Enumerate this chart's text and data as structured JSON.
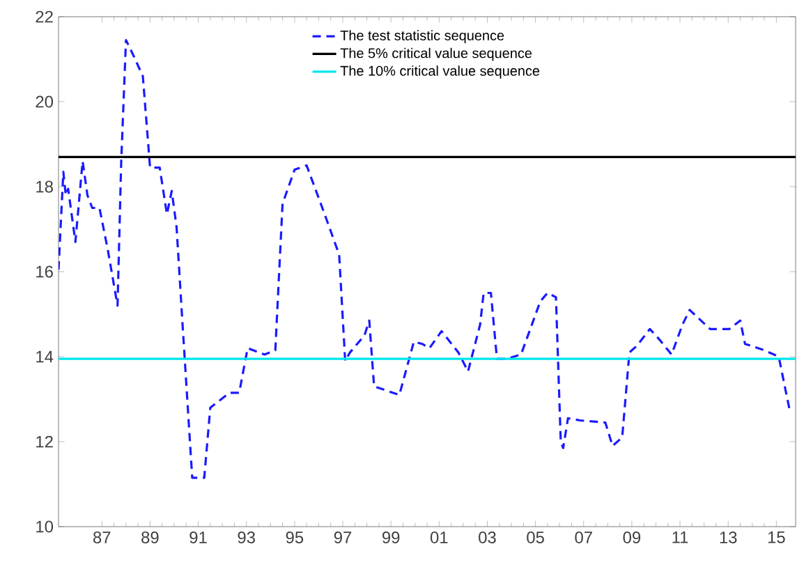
{
  "chart_data": {
    "type": "line",
    "xlim": [
      1985.2,
      2015.8
    ],
    "ylim": [
      10,
      22
    ],
    "xticks": [
      {
        "value": 1987,
        "label": "87"
      },
      {
        "value": 1989,
        "label": "89"
      },
      {
        "value": 1991,
        "label": "91"
      },
      {
        "value": 1993,
        "label": "93"
      },
      {
        "value": 1995,
        "label": "95"
      },
      {
        "value": 1997,
        "label": "97"
      },
      {
        "value": 1999,
        "label": "99"
      },
      {
        "value": 2001,
        "label": "01"
      },
      {
        "value": 2003,
        "label": "03"
      },
      {
        "value": 2005,
        "label": "05"
      },
      {
        "value": 2007,
        "label": "07"
      },
      {
        "value": 2009,
        "label": "09"
      },
      {
        "value": 2011,
        "label": "11"
      },
      {
        "value": 2013,
        "label": "13"
      },
      {
        "value": 2015,
        "label": "15"
      }
    ],
    "yticks": [
      10,
      12,
      14,
      16,
      18,
      20,
      22
    ],
    "grid": false,
    "legend": "top",
    "marker": "none",
    "series": [
      {
        "name": "The test statistic sequence",
        "color": "#1a1aff",
        "line_style": "dashed",
        "x": [
          1985.2,
          1985.4,
          1985.5,
          1985.6,
          1985.9,
          1986.2,
          1986.4,
          1986.6,
          1986.9,
          1987.25,
          1987.65,
          1987.8,
          1988.0,
          1988.3,
          1988.7,
          1989.0,
          1989.4,
          1989.7,
          1989.9,
          1990.1,
          1990.35,
          1990.75,
          1991.25,
          1991.5,
          1992.3,
          1992.7,
          1993.05,
          1993.75,
          1994.2,
          1994.5,
          1995.0,
          1995.5,
          1996.25,
          1996.85,
          1997.1,
          1997.3,
          1997.9,
          1998.1,
          1998.3,
          1999.35,
          1999.95,
          2000.3,
          2000.6,
          2001.1,
          2001.8,
          2002.2,
          2002.7,
          2002.85,
          2003.15,
          2003.4,
          2003.8,
          2004.4,
          2005.2,
          2005.5,
          2005.85,
          2006.05,
          2006.15,
          2006.35,
          2006.85,
          2007.9,
          2008.2,
          2008.6,
          2008.9,
          2009.2,
          2009.75,
          2010.15,
          2010.65,
          2011.1,
          2011.4,
          2012.25,
          2013.05,
          2013.5,
          2013.7,
          2014.5,
          2015.1,
          2015.35,
          2015.55
        ],
        "values": [
          16.05,
          18.35,
          17.8,
          17.95,
          16.7,
          18.6,
          17.8,
          17.5,
          17.5,
          16.5,
          15.2,
          18.55,
          21.45,
          21.1,
          20.6,
          18.45,
          18.45,
          17.35,
          17.9,
          17.05,
          14.75,
          11.15,
          11.15,
          12.8,
          13.15,
          13.15,
          14.2,
          14.05,
          14.15,
          17.6,
          18.4,
          18.5,
          17.35,
          16.4,
          13.9,
          14.1,
          14.5,
          14.85,
          13.3,
          13.1,
          14.35,
          14.3,
          14.2,
          14.6,
          14.1,
          13.65,
          14.75,
          15.5,
          15.5,
          13.95,
          13.95,
          14.05,
          15.3,
          15.5,
          15.4,
          12.0,
          11.85,
          12.55,
          12.5,
          12.45,
          11.9,
          12.1,
          14.1,
          14.25,
          14.65,
          14.4,
          14.05,
          14.75,
          15.1,
          14.65,
          14.65,
          14.85,
          14.3,
          14.15,
          14.0,
          13.3,
          12.75
        ]
      },
      {
        "name": "The 5% critical value sequence",
        "color": "#000000",
        "line_style": "solid",
        "x": [
          1985.2,
          2015.8
        ],
        "values": [
          18.7,
          18.7
        ]
      },
      {
        "name": "The 10% critical value sequence",
        "color": "#00e5ee",
        "line_style": "solid",
        "x": [
          1985.2,
          2015.8
        ],
        "values": [
          13.95,
          13.95
        ]
      }
    ]
  }
}
